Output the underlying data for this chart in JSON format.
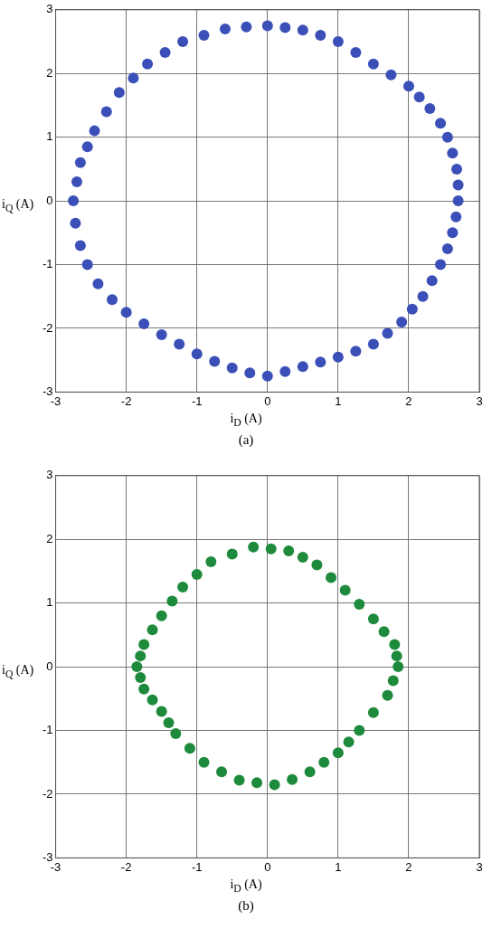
{
  "chart_data": [
    {
      "type": "scatter",
      "xlabel": "i$_{D}$ (A)",
      "ylabel": "i$_{Q}$ (A)",
      "annotations": [
        "(a)"
      ],
      "xlim": [
        -3,
        3
      ],
      "ylim": [
        -3,
        3
      ],
      "xticks": [
        -3,
        -2,
        -1,
        0,
        1,
        2,
        3
      ],
      "yticks": [
        -3,
        -2,
        -1,
        0,
        1,
        2,
        3
      ],
      "grid": true,
      "marker": "circle",
      "series": [
        {
          "color": "#3a4fb8",
          "x": [
            0,
            0.25,
            0.5,
            0.75,
            1,
            1.25,
            1.5,
            1.75,
            2,
            2.15,
            2.3,
            2.45,
            2.55,
            2.62,
            2.68,
            2.7,
            2.7,
            2.67,
            2.62,
            2.55,
            2.45,
            2.33,
            2.2,
            2.05,
            1.9,
            1.7,
            1.5,
            1.25,
            1,
            0.75,
            0.5,
            0.25,
            0,
            -0.25,
            -0.5,
            -0.75,
            -1,
            -1.25,
            -1.5,
            -1.75,
            -2,
            -2.2,
            -2.4,
            -2.55,
            -2.65,
            -2.72,
            -2.75,
            -2.7,
            -2.65,
            -2.55,
            -2.45,
            -2.28,
            -2.1,
            -1.9,
            -1.7,
            -1.45,
            -1.2,
            -0.9,
            -0.6,
            -0.3
          ],
          "values": [
            2.75,
            2.72,
            2.68,
            2.6,
            2.5,
            2.33,
            2.15,
            1.98,
            1.8,
            1.63,
            1.45,
            1.22,
            1.0,
            0.75,
            0.5,
            0.25,
            0,
            -0.25,
            -0.5,
            -0.75,
            -1.0,
            -1.25,
            -1.5,
            -1.7,
            -1.9,
            -2.08,
            -2.25,
            -2.36,
            -2.45,
            -2.53,
            -2.6,
            -2.68,
            -2.75,
            -2.7,
            -2.62,
            -2.52,
            -2.4,
            -2.25,
            -2.1,
            -1.93,
            -1.75,
            -1.55,
            -1.3,
            -1.0,
            -0.7,
            -0.35,
            0,
            0.3,
            0.6,
            0.85,
            1.1,
            1.4,
            1.7,
            1.93,
            2.15,
            2.33,
            2.5,
            2.6,
            2.7,
            2.73
          ]
        }
      ]
    },
    {
      "type": "scatter",
      "xlabel": "i$_{D}$ (A)",
      "ylabel": "i$_{Q}$ (A)",
      "annotations": [
        "(b)"
      ],
      "xlim": [
        -3,
        3
      ],
      "ylim": [
        -3,
        3
      ],
      "xticks": [
        -3,
        -2,
        -1,
        0,
        1,
        2,
        3
      ],
      "yticks": [
        -3,
        -2,
        -1,
        0,
        1,
        2,
        3
      ],
      "grid": true,
      "marker": "circle",
      "series": [
        {
          "color": "#1e8a3c",
          "x": [
            -0.2,
            0.05,
            0.3,
            0.5,
            0.7,
            0.9,
            1.1,
            1.3,
            1.5,
            1.65,
            1.8,
            1.83,
            1.85,
            1.78,
            1.7,
            1.5,
            1.3,
            1.15,
            1.0,
            0.8,
            0.6,
            0.35,
            0.1,
            -0.15,
            -0.4,
            -0.65,
            -0.9,
            -1.1,
            -1.3,
            -1.4,
            -1.5,
            -1.63,
            -1.75,
            -1.8,
            -1.85,
            -1.8,
            -1.75,
            -1.63,
            -1.5,
            -1.35,
            -1.2,
            -1.0,
            -0.8,
            -0.5
          ],
          "values": [
            1.88,
            1.85,
            1.82,
            1.72,
            1.6,
            1.4,
            1.2,
            0.98,
            0.75,
            0.55,
            0.35,
            0.17,
            0,
            -0.22,
            -0.45,
            -0.72,
            -1.0,
            -1.18,
            -1.35,
            -1.5,
            -1.65,
            -1.77,
            -1.85,
            -1.82,
            -1.78,
            -1.65,
            -1.5,
            -1.28,
            -1.05,
            -0.88,
            -0.7,
            -0.52,
            -0.35,
            -0.17,
            0,
            0.17,
            0.35,
            0.58,
            0.8,
            1.03,
            1.25,
            1.45,
            1.65,
            1.77
          ]
        }
      ]
    }
  ]
}
